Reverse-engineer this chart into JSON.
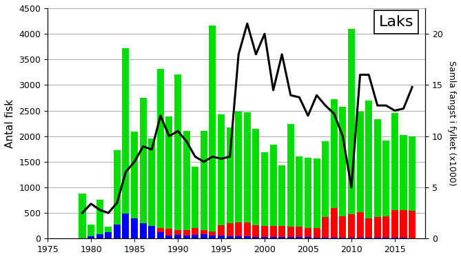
{
  "years": [
    1979,
    1980,
    1981,
    1982,
    1983,
    1984,
    1985,
    1986,
    1987,
    1988,
    1989,
    1990,
    1991,
    1992,
    1993,
    1994,
    1995,
    1996,
    1997,
    1998,
    1999,
    2000,
    2001,
    2002,
    2003,
    2004,
    2005,
    2006,
    2007,
    2008,
    2009,
    2010,
    2011,
    2012,
    2013,
    2014,
    2015,
    2016,
    2017
  ],
  "green_bars": [
    880,
    220,
    680,
    110,
    1450,
    3230,
    1700,
    2450,
    1700,
    3100,
    2200,
    3040,
    1950,
    1200,
    1950,
    4020,
    2170,
    1870,
    2170,
    2160,
    1880,
    1440,
    1580,
    1190,
    2010,
    1370,
    1380,
    1350,
    1480,
    2120,
    2140,
    3620,
    1960,
    2290,
    1910,
    1470,
    1890,
    1460,
    1460
  ],
  "blue_bars": [
    0,
    50,
    80,
    120,
    280,
    490,
    390,
    300,
    250,
    130,
    60,
    70,
    60,
    70,
    80,
    60,
    60,
    50,
    50,
    40,
    30,
    30,
    30,
    30,
    30,
    30,
    25,
    20,
    20,
    20,
    20,
    20,
    20,
    20,
    20,
    20,
    20,
    20,
    0
  ],
  "red_bars": [
    0,
    0,
    0,
    0,
    0,
    0,
    0,
    0,
    0,
    80,
    130,
    100,
    100,
    130,
    80,
    80,
    200,
    250,
    260,
    270,
    230,
    220,
    220,
    210,
    200,
    200,
    180,
    190,
    400,
    580,
    420,
    450,
    500,
    380,
    400,
    420,
    540,
    540,
    540
  ],
  "line_values": [
    2.5,
    3.4,
    2.8,
    2.5,
    3.5,
    6.5,
    7.5,
    9.0,
    8.7,
    12.0,
    10.0,
    10.5,
    9.5,
    8.0,
    7.5,
    8.0,
    7.8,
    8.0,
    18.0,
    21.0,
    18.0,
    20.0,
    14.5,
    18.0,
    14.0,
    13.8,
    12.0,
    14.0,
    13.0,
    12.2,
    10.0,
    5.0,
    16.0,
    16.0,
    13.0,
    13.0,
    12.5,
    12.7,
    14.8
  ],
  "ylabel_left": "Antal fisk",
  "ylabel_right": "Samla fangst i fylket (x1000)",
  "ylim_left": [
    0,
    4500
  ],
  "ylim_right": [
    0,
    22.5
  ],
  "yticks_left": [
    0,
    500,
    1000,
    1500,
    2000,
    2500,
    3000,
    3500,
    4000,
    4500
  ],
  "yticks_right": [
    0,
    5,
    10,
    15,
    20
  ],
  "xlim": [
    1975.5,
    2018.5
  ],
  "xticks": [
    1975,
    1980,
    1985,
    1990,
    1995,
    2000,
    2005,
    2010,
    2015
  ],
  "label_laks": "Laks",
  "bar_width": 0.8,
  "green_color": "#00dd00",
  "blue_color": "#0000ff",
  "red_color": "#ff0000",
  "line_color": "#000000",
  "bg_color": "#ffffff",
  "grid_color": "#aaaaaa"
}
